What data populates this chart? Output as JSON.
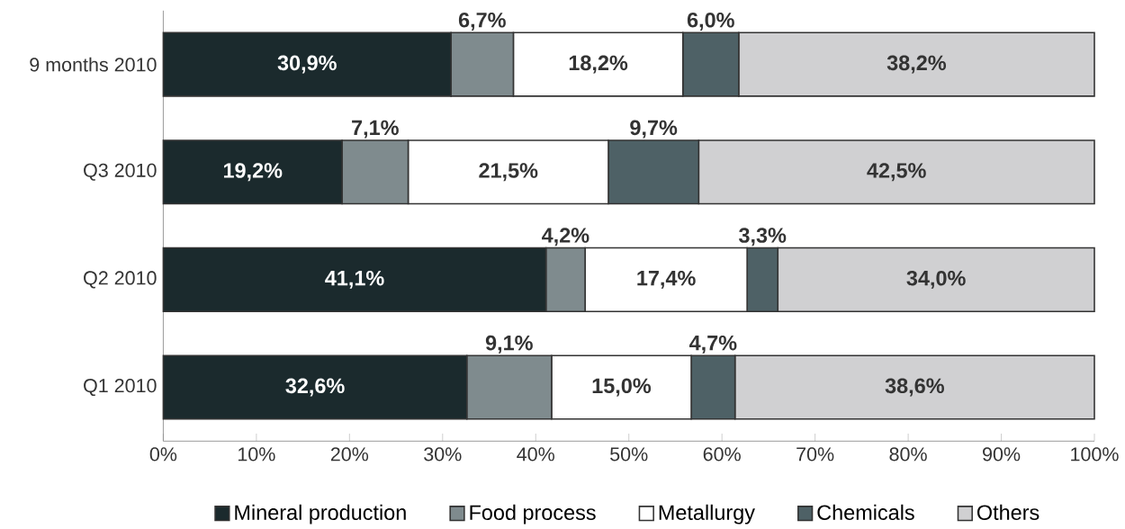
{
  "chart_data": {
    "type": "bar",
    "orientation": "horizontal",
    "stacked": true,
    "legend": "bottom",
    "categories": [
      "9 months 2010",
      "Q3 2010",
      "Q2 2010",
      "Q1 2010"
    ],
    "series": [
      {
        "name": "Mineral production",
        "color": "#1b2a2d",
        "values": [
          30.9,
          19.2,
          41.1,
          32.6
        ],
        "value_labels": [
          "30,9%",
          "19,2%",
          "41,1%",
          "32,6%"
        ]
      },
      {
        "name": "Food process",
        "color": "#7f8b8e",
        "values": [
          6.7,
          7.1,
          4.2,
          9.1
        ],
        "value_labels": [
          "6,7%",
          "7,1%",
          "4,2%",
          "9,1%"
        ]
      },
      {
        "name": "Metallurgy",
        "color": "#ffffff",
        "values": [
          18.2,
          21.5,
          17.4,
          15.0
        ],
        "value_labels": [
          "18,2%",
          "21,5%",
          "17,4%",
          "15,0%"
        ]
      },
      {
        "name": "Chemicals",
        "color": "#4e6166",
        "values": [
          6.0,
          9.7,
          3.3,
          4.7
        ],
        "value_labels": [
          "6,0%",
          "9,7%",
          "3,3%",
          "4,7%"
        ]
      },
      {
        "name": "Others",
        "color": "#d0d0d2",
        "values": [
          38.2,
          42.5,
          34.0,
          38.6
        ],
        "value_labels": [
          "38,2%",
          "42,5%",
          "34,0%",
          "38,6%"
        ]
      }
    ],
    "xlim": [
      0,
      100
    ],
    "xticks": [
      {
        "value": 0,
        "label": "0%"
      },
      {
        "value": 10,
        "label": "10%"
      },
      {
        "value": 20,
        "label": "20%"
      },
      {
        "value": 30,
        "label": "30%"
      },
      {
        "value": 40,
        "label": "40%"
      },
      {
        "value": 50,
        "label": "50%"
      },
      {
        "value": 60,
        "label": "60%"
      },
      {
        "value": 70,
        "label": "70%"
      },
      {
        "value": 80,
        "label": "80%"
      },
      {
        "value": 90,
        "label": "90%"
      },
      {
        "value": 100,
        "label": "100%"
      }
    ]
  }
}
